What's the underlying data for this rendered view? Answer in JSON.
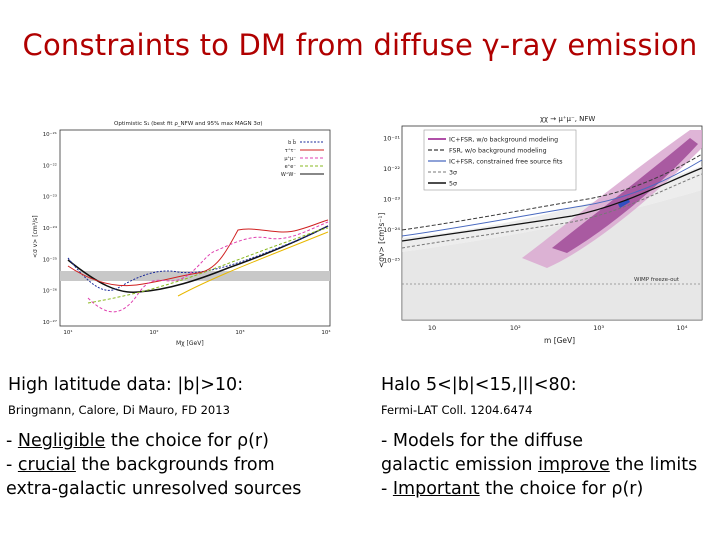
{
  "title": "Constraints to DM from diffuse γ-ray emission",
  "left": {
    "heading": "High latitude data: |b|>10:",
    "citation": "Bringmann, Calore, Di Mauro, FD 2013",
    "line1_prefix": "- ",
    "line1_underlined": "Negligible",
    "line1_rest": " the choice for ρ(r)",
    "line2_prefix": "- ",
    "line2_underlined": "crucial",
    "line2_rest": " the backgrounds from",
    "line3": "extra-galactic unresolved sources",
    "figure": {
      "top_title": "Optimistic S₁ (best fit ρ_NFW and 95% max MAGN 3σ)",
      "ylabel": "<σ v> [cm³/s]",
      "xlabel": "Mχ [GeV]",
      "yticks": [
        "10⁻²¹",
        "10⁻²²",
        "10⁻²³",
        "10⁻²⁴",
        "10⁻²⁵",
        "10⁻²⁶",
        "10⁻²⁷"
      ],
      "xticks": [
        "10¹",
        "10²",
        "10³",
        "10⁴"
      ],
      "legend": [
        "b b̄",
        "τ⁺τ⁻",
        "μ⁺μ⁻",
        "e⁺e⁻",
        "W⁺W⁻"
      ]
    }
  },
  "right": {
    "heading": "Halo 5<|b|<15,|l|<80:",
    "citation": "Fermi-LAT Coll. 1204.6474",
    "line1": "-  Models for the diffuse",
    "line2_prefix": "galactic emission ",
    "line2_underlined": "improve",
    "line2_rest": " the limits",
    "line3_prefix": "- ",
    "line3_underlined": "Important",
    "line3_rest": " the choice for ρ(r)",
    "figure": {
      "top_label": "χχ → μ⁺μ⁻, NFW",
      "ylabel": "<σv> [cm³s⁻¹]",
      "xlabel": "m [GeV]",
      "yticks": [
        "10⁻²¹",
        "10⁻²²",
        "10⁻²³",
        "10⁻²⁴",
        "10⁻²⁵"
      ],
      "xticks": [
        "10",
        "10²",
        "10³",
        "10⁴"
      ],
      "legend": [
        "IC+FSR, w/o background modeling",
        "FSR, w/o background modeling",
        "IC+FSR, constrained free source fits",
        "3σ",
        "5σ"
      ],
      "annotation": "WIMP freeze-out"
    }
  }
}
